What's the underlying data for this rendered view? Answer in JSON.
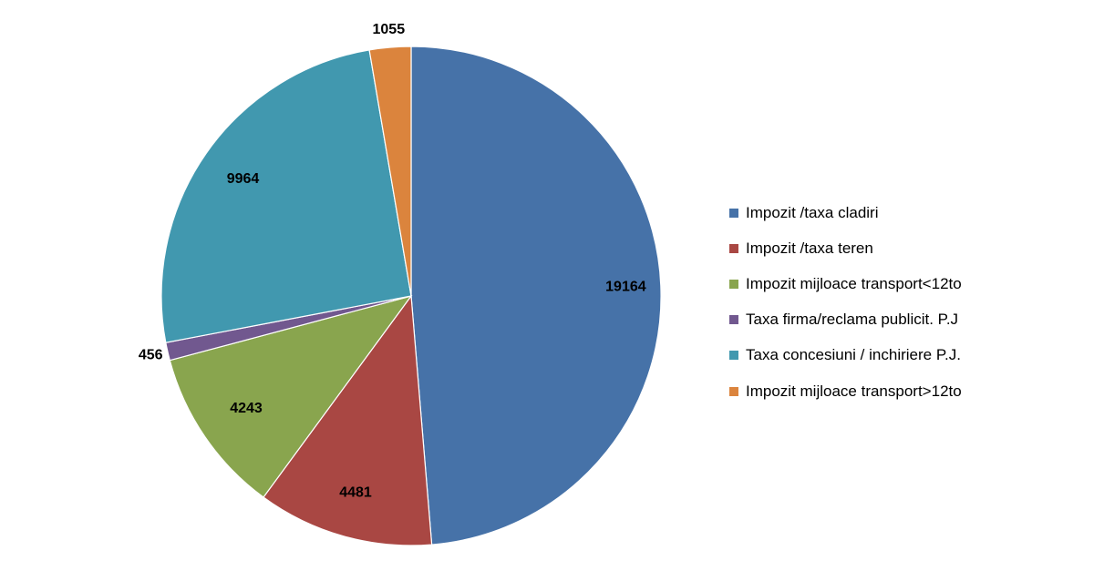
{
  "chart_data": {
    "type": "pie",
    "categories": [
      "Impozit /taxa cladiri",
      "Impozit /taxa teren",
      "Impozit mijloace transport<12to",
      "Taxa firma/reclama publicit. P.J",
      "Taxa concesiuni / inchiriere P.J.",
      "Impozit mijloace transport>12to"
    ],
    "values": [
      19164,
      4481,
      4243,
      456,
      9964,
      1055
    ],
    "data_labels": [
      "19164",
      "4481",
      "4243",
      "456",
      "9964",
      "1055"
    ],
    "colors": [
      "#4672A8",
      "#A94743",
      "#89A54E",
      "#71588F",
      "#4198AF",
      "#DB843D"
    ],
    "start_angle": "12 o'clock",
    "direction": "clockwise",
    "legend_position": "right"
  }
}
